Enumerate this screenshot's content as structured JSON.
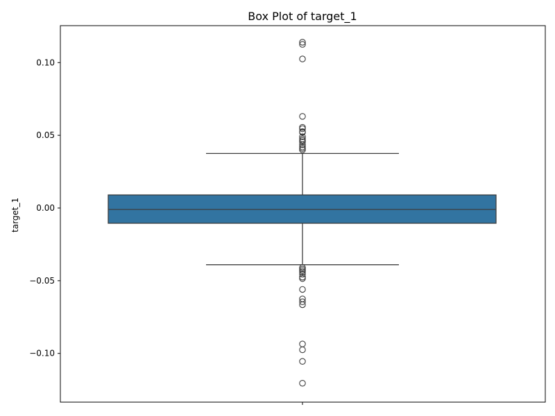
{
  "chart_data": {
    "type": "box",
    "title": "Box Plot of target_1",
    "xlabel": "",
    "ylabel": "target_1",
    "ylim": [
      -0.1335,
      0.1254
    ],
    "yticks": [
      0.1,
      0.05,
      0.0,
      -0.05,
      -0.1
    ],
    "ytick_labels": [
      "0.10",
      "0.05",
      "0.00",
      "−0.05",
      "−0.10"
    ],
    "grid": false,
    "box": {
      "q1": -0.0105,
      "median": -0.001,
      "q3": 0.009,
      "whisker_low": -0.039,
      "whisker_high": 0.0375
    },
    "outliers_high": [
      0.114,
      0.1125,
      0.1025,
      0.063,
      0.0555,
      0.0545,
      0.0525,
      0.052,
      0.049,
      0.0475,
      0.0465,
      0.0455,
      0.0435,
      0.042,
      0.041,
      0.04
    ],
    "outliers_low": [
      -0.041,
      -0.042,
      -0.043,
      -0.044,
      -0.0455,
      -0.0475,
      -0.0485,
      -0.056,
      -0.0625,
      -0.0645,
      -0.0665,
      -0.0935,
      -0.0975,
      -0.1055,
      -0.1205
    ],
    "colors": {
      "box_fill": "#3274a1",
      "line": "#3d3d3d",
      "axis": "#000000"
    }
  }
}
